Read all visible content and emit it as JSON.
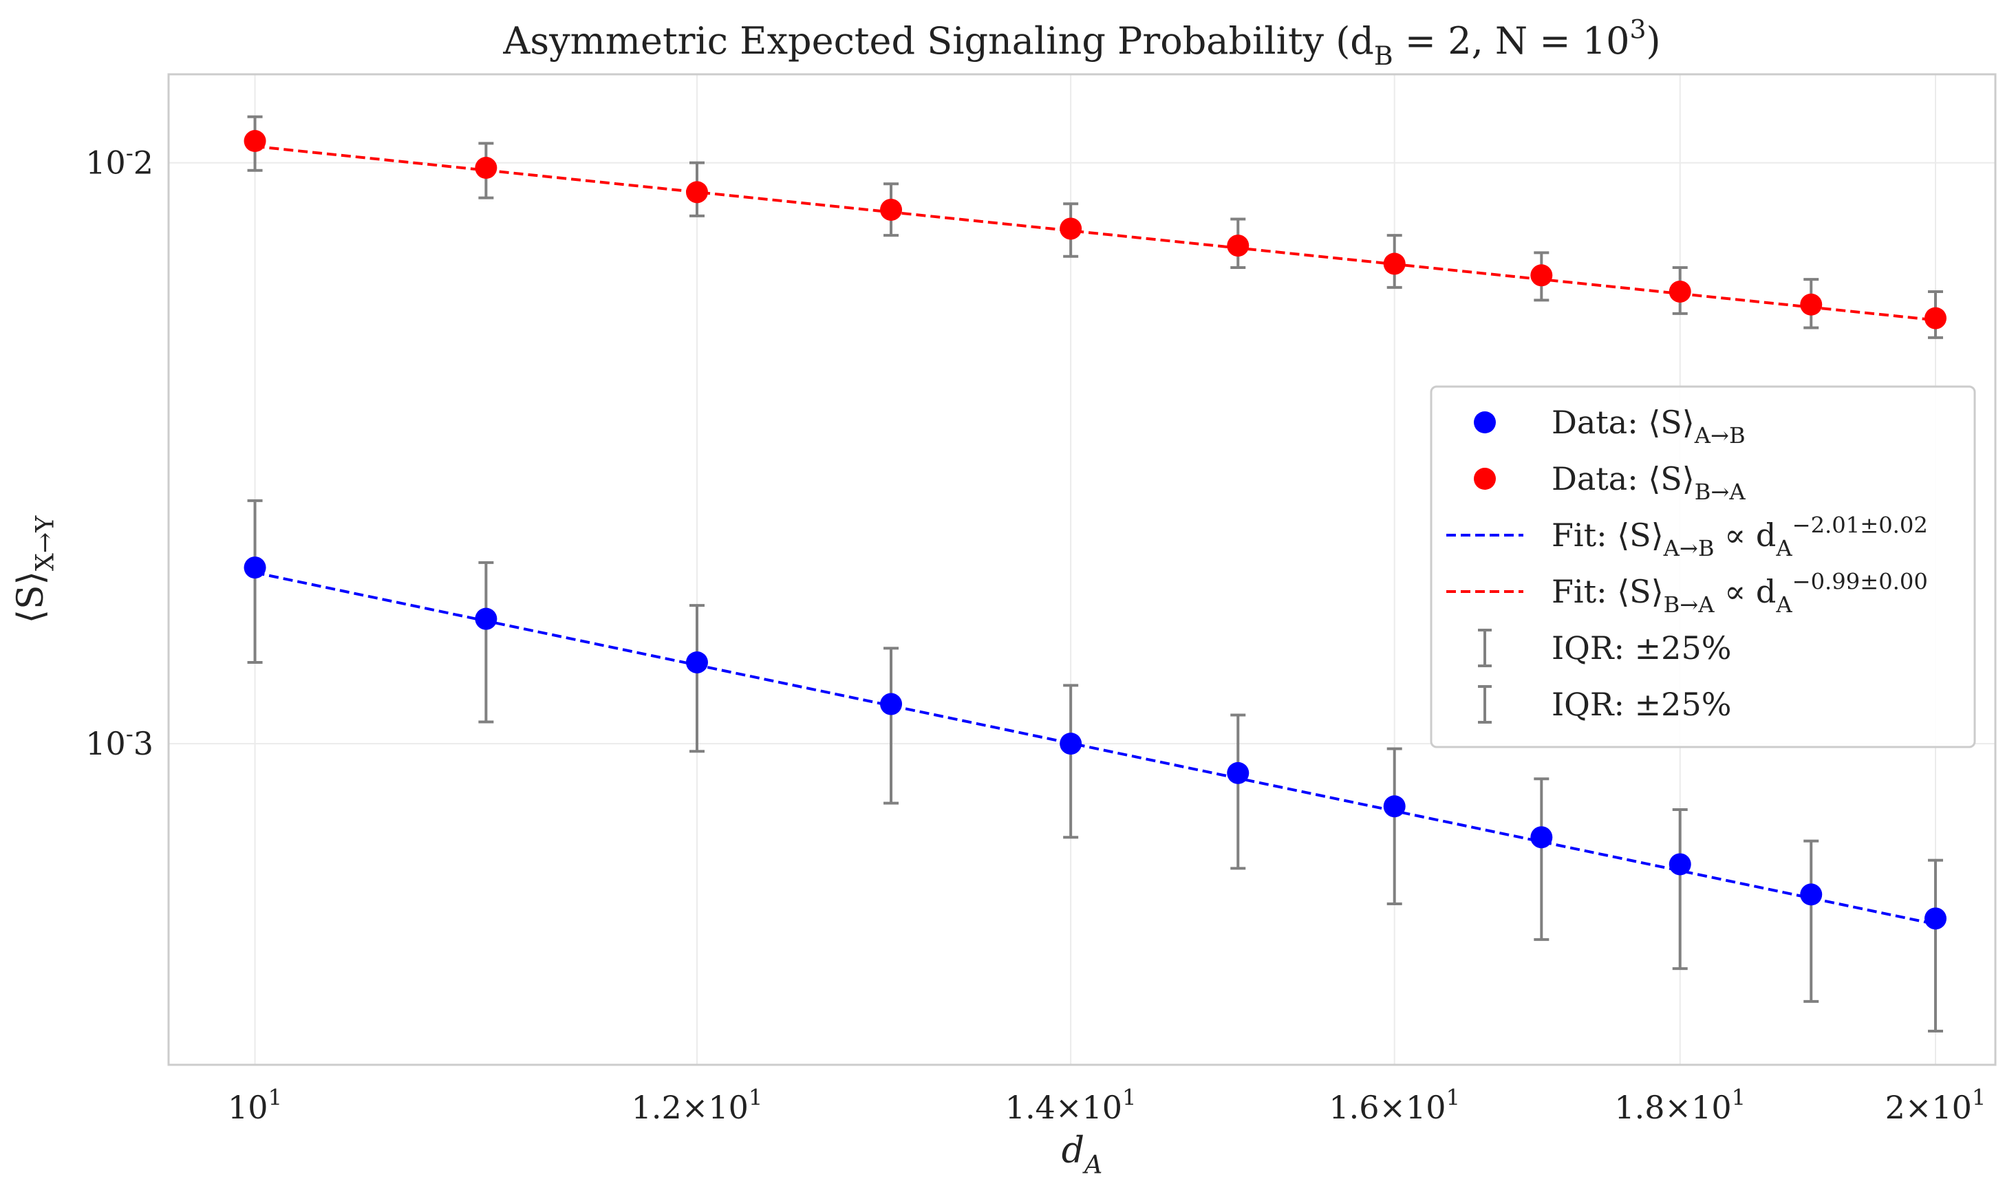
{
  "chart_data": {
    "type": "scatter",
    "title": "Asymmetric Expected Signaling Probability (d_B = 2, N = 10^3)",
    "xlabel": "d_A",
    "ylabel": "⟨S⟩_{X→Y}",
    "x_scale": "log",
    "y_scale": "log",
    "xlim": [
      9.65,
      20.5
    ],
    "ylim": [
      0.00028,
      0.0142
    ],
    "grid": true,
    "legend_position": "center-right",
    "x_ticks": [
      {
        "value": 10,
        "label": "10^1"
      },
      {
        "value": 12,
        "label": "1.2×10^1"
      },
      {
        "value": 14,
        "label": "1.4×10^1"
      },
      {
        "value": 16,
        "label": "1.6×10^1"
      },
      {
        "value": 18,
        "label": "1.8×10^1"
      },
      {
        "value": 20,
        "label": "2×10^1"
      }
    ],
    "y_ticks": [
      {
        "value": 0.01,
        "label": "10^-2"
      },
      {
        "value": 0.001,
        "label": "10^-3"
      }
    ],
    "x": [
      10,
      11,
      12,
      13,
      14,
      15,
      16,
      17,
      18,
      19,
      20
    ],
    "series": [
      {
        "name": "Data: ⟨S⟩_{A→B}",
        "color": "#0000ff",
        "values": [
          0.00201,
          0.00164,
          0.00138,
          0.00117,
          0.001,
          0.00089,
          0.00078,
          0.00069,
          0.00062,
          0.00055,
          0.0005
        ],
        "err_low": [
          0.00138,
          0.00109,
          0.00097,
          0.00079,
          0.00069,
          0.00061,
          0.00053,
          0.00046,
          0.00041,
          0.00036,
          0.00032
        ],
        "err_high": [
          0.00262,
          0.00205,
          0.00173,
          0.00146,
          0.00126,
          0.00112,
          0.00098,
          0.00087,
          0.00077,
          0.00068,
          0.00063
        ]
      },
      {
        "name": "Data: ⟨S⟩_{B→A}",
        "color": "#ff0000",
        "values": [
          0.0109,
          0.0098,
          0.0089,
          0.0083,
          0.0077,
          0.0072,
          0.0067,
          0.0064,
          0.006,
          0.0057,
          0.0054
        ],
        "err_low": [
          0.0097,
          0.0087,
          0.0081,
          0.0075,
          0.0069,
          0.0066,
          0.0061,
          0.0058,
          0.0055,
          0.0052,
          0.005
        ],
        "err_high": [
          0.012,
          0.0108,
          0.01,
          0.0092,
          0.0085,
          0.008,
          0.0075,
          0.007,
          0.0066,
          0.0063,
          0.006
        ]
      }
    ],
    "fits": [
      {
        "name": "Fit: ⟨S⟩_{A→B} ∝ d_A^{−2.01±0.02}",
        "color": "#0000ff",
        "x": [
          10,
          20
        ],
        "y": [
          0.00197,
          0.000489
        ]
      },
      {
        "name": "Fit: ⟨S⟩_{B→A} ∝ d_A^{−0.99±0.00}",
        "color": "#ff0000",
        "x": [
          10,
          20
        ],
        "y": [
          0.01067,
          0.00536
        ]
      }
    ],
    "errorbar_legend": [
      {
        "name": "IQR: ±25%",
        "color": "#808080"
      },
      {
        "name": "IQR: ±25%",
        "color": "#808080"
      }
    ]
  }
}
